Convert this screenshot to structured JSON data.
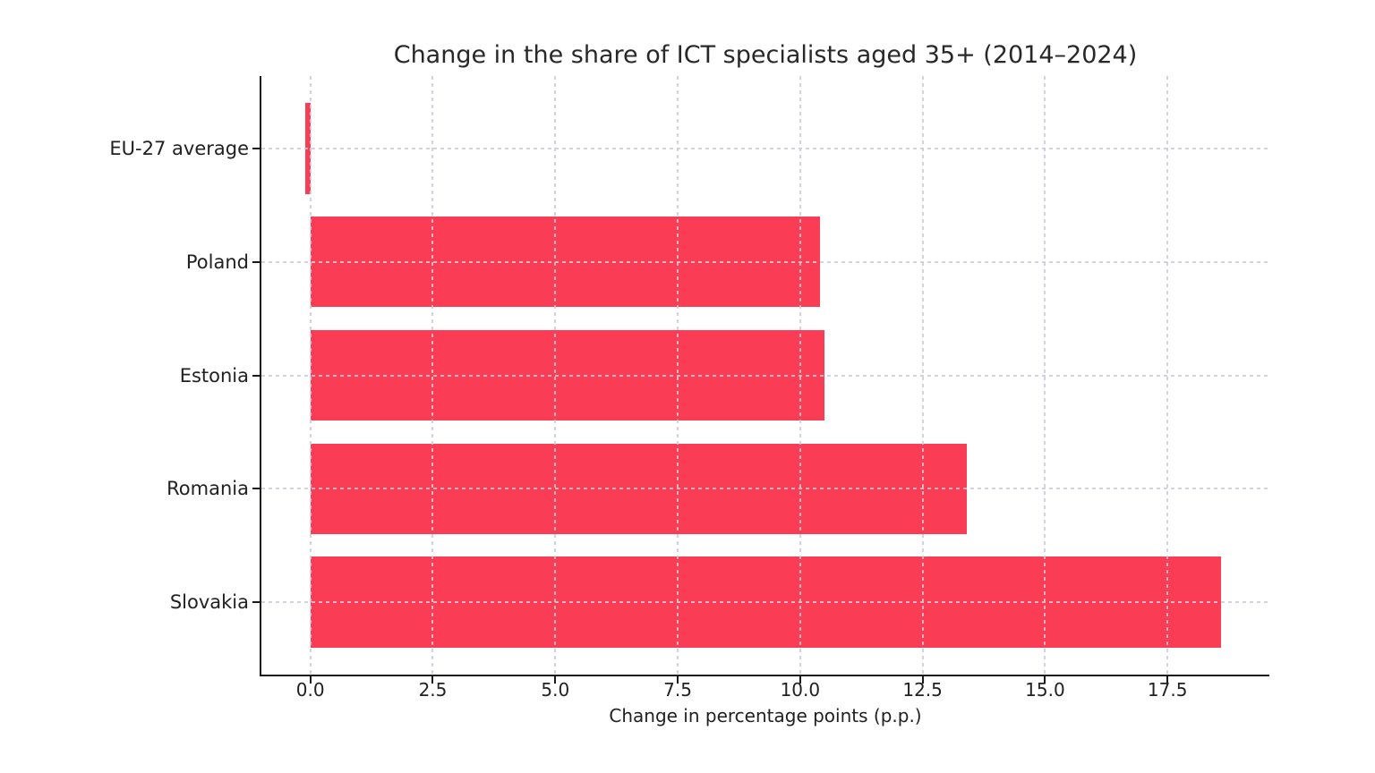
{
  "chart_data": {
    "type": "bar",
    "orientation": "horizontal",
    "title": "Change in the share of ICT specialists aged 35+ (2014–2024)",
    "xlabel": "Change in percentage points (p.p.)",
    "categories": [
      "EU-27 average",
      "Poland",
      "Estonia",
      "Romania",
      "Slovakia"
    ],
    "values": [
      -0.1,
      10.4,
      10.5,
      13.4,
      18.6
    ],
    "x_ticks": [
      0,
      2.5,
      5,
      7.5,
      10,
      12.5,
      15,
      17.5
    ],
    "x_tick_labels": [
      "0.0",
      "2.5",
      "5.0",
      "7.5",
      "10.0",
      "12.5",
      "15.0",
      "17.5"
    ],
    "xlim": [
      -1.0,
      19.58
    ],
    "grid": true,
    "legend": null,
    "bar_color": "#FA3C55",
    "grid_color": "#CDCAD6",
    "axis_color": "#1A1A1A",
    "text_color": "#212121",
    "background_color": "#FFFFFF"
  }
}
